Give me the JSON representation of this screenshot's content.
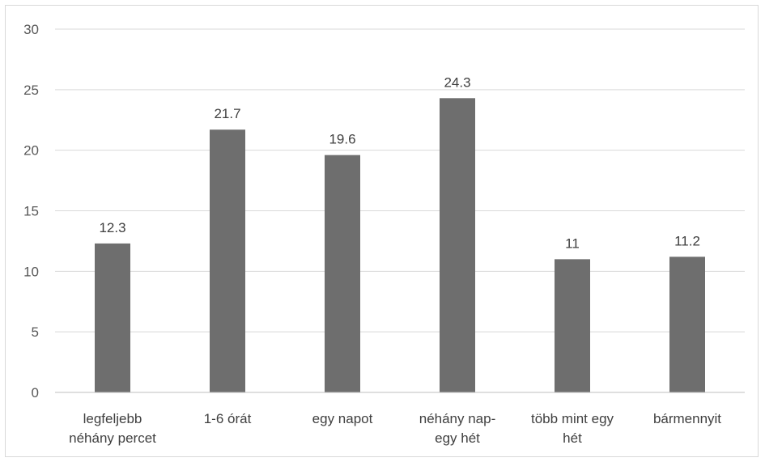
{
  "chart_data": {
    "type": "bar",
    "title": "",
    "xlabel": "",
    "ylabel": "",
    "categories": [
      [
        "legfeljebb",
        "néhány percet"
      ],
      [
        "1-6 órát"
      ],
      [
        "egy napot"
      ],
      [
        "néhány nap-",
        "egy hét"
      ],
      [
        "több mint egy",
        "hét"
      ],
      [
        "bármennyit"
      ]
    ],
    "values": [
      12.3,
      21.7,
      19.6,
      24.3,
      11,
      11.2
    ],
    "data_labels": [
      "12.3",
      "21.7",
      "19.6",
      "24.3",
      "11",
      "11.2"
    ],
    "ylim": [
      0,
      30
    ],
    "yticks": [
      0,
      5,
      10,
      15,
      20,
      25,
      30
    ],
    "grid": true,
    "legend": "none",
    "colors": {
      "bar": "#6e6e6e",
      "grid": "#d9d9d9",
      "axis": "#bfbfbf"
    }
  }
}
